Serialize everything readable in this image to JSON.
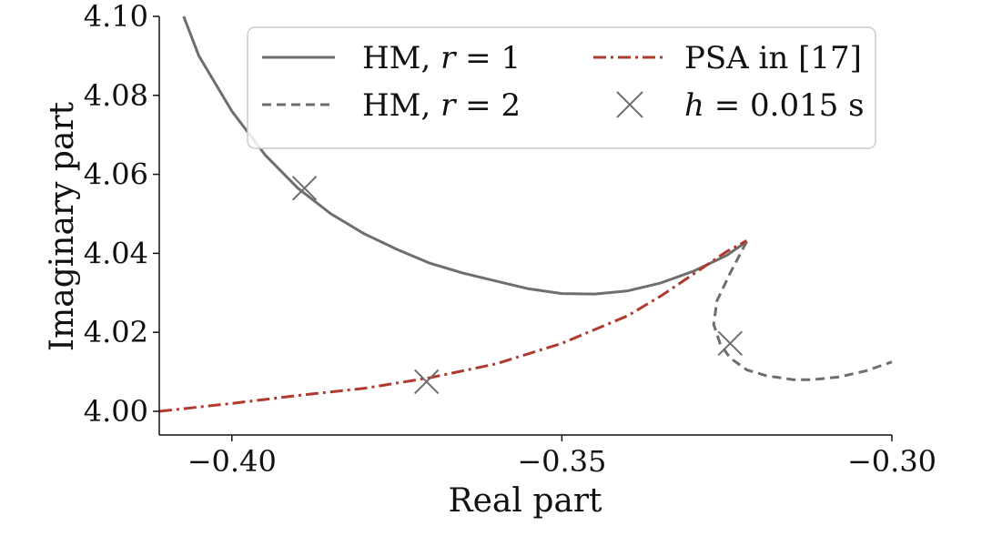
{
  "chart_data": {
    "type": "line",
    "title": "",
    "xlabel": "Real part",
    "ylabel": "Imaginary part",
    "xlim": [
      -0.411,
      -0.3
    ],
    "ylim": [
      3.994,
      4.1
    ],
    "xticks": [
      -0.4,
      -0.35,
      -0.3
    ],
    "xtick_labels": [
      "−0.40",
      "−0.35",
      "−0.30"
    ],
    "yticks": [
      4.0,
      4.02,
      4.04,
      4.06,
      4.08,
      4.1
    ],
    "ytick_labels": [
      "4.00",
      "4.02",
      "4.04",
      "4.06",
      "4.08",
      "4.10"
    ],
    "grid": false,
    "legend_position": "top-right",
    "series": [
      {
        "name": "HM, r = 1",
        "style": "solid",
        "color": "#6e6e6e",
        "x": [
          -0.4073,
          -0.405,
          -0.4,
          -0.395,
          -0.39,
          -0.385,
          -0.38,
          -0.375,
          -0.37,
          -0.365,
          -0.36,
          -0.355,
          -0.35,
          -0.345,
          -0.34,
          -0.335,
          -0.33,
          -0.325,
          -0.322
        ],
        "y": [
          4.1,
          4.09,
          4.076,
          4.065,
          4.0565,
          4.05,
          4.045,
          4.041,
          4.0375,
          4.035,
          4.033,
          4.031,
          4.0298,
          4.0297,
          4.0305,
          4.0325,
          4.0355,
          4.0395,
          4.043
        ]
      },
      {
        "name": "HM, r = 2",
        "style": "dashed",
        "color": "#6e6e6e",
        "x": [
          -0.322,
          -0.3245,
          -0.3265,
          -0.327,
          -0.326,
          -0.3245,
          -0.322,
          -0.319,
          -0.315,
          -0.312,
          -0.308,
          -0.304,
          -0.3
        ],
        "y": [
          4.043,
          4.035,
          4.028,
          4.022,
          4.017,
          4.0135,
          4.0105,
          4.009,
          4.008,
          4.008,
          4.0087,
          4.0102,
          4.0125
        ]
      },
      {
        "name": "PSA in [17]",
        "style": "dashdot",
        "color": "#b03a2e",
        "x": [
          -0.411,
          -0.4,
          -0.39,
          -0.38,
          -0.37,
          -0.36,
          -0.35,
          -0.34,
          -0.335,
          -0.33,
          -0.325,
          -0.322
        ],
        "y": [
          4.0,
          4.002,
          4.004,
          4.0058,
          4.0085,
          4.012,
          4.0172,
          4.0242,
          4.0292,
          4.0348,
          4.0405,
          4.0432
        ]
      }
    ],
    "markers": {
      "name": "h = 0.015 s",
      "symbol": "x",
      "color": "#6e6e6e",
      "points": [
        {
          "x": -0.389,
          "y": 4.0565
        },
        {
          "x": -0.3705,
          "y": 4.0075
        },
        {
          "x": -0.3245,
          "y": 4.0172
        }
      ]
    },
    "legend": [
      {
        "label": "HM,",
        "var": "r",
        "rest": " = 1",
        "kind": "solid",
        "color": "#6e6e6e"
      },
      {
        "label": "PSA in [17]",
        "var": "",
        "rest": "",
        "kind": "dashdot",
        "color": "#b03a2e"
      },
      {
        "label": "",
        "var": "h",
        "rest": " = 0.015 s",
        "kind": "dashed",
        "color": "#6e6e6e",
        "note": "placeholder"
      },
      {
        "label": "",
        "var": "",
        "rest": "",
        "kind": "",
        "color": ""
      }
    ],
    "legend_entries": [
      {
        "pre": "HM,  ",
        "var": "r",
        "post": " = 1",
        "kind": "solid",
        "color": "#6e6e6e"
      },
      {
        "pre": "HM,  ",
        "var": "r",
        "post": " = 2",
        "kind": "dashed",
        "color": "#6e6e6e"
      },
      {
        "pre": "PSA in [17]",
        "var": "",
        "post": "",
        "kind": "dashdot",
        "color": "#b03a2e"
      },
      {
        "pre": "",
        "var": "h",
        "post": " = 0.015 s",
        "kind": "marker",
        "color": "#6e6e6e"
      }
    ]
  }
}
